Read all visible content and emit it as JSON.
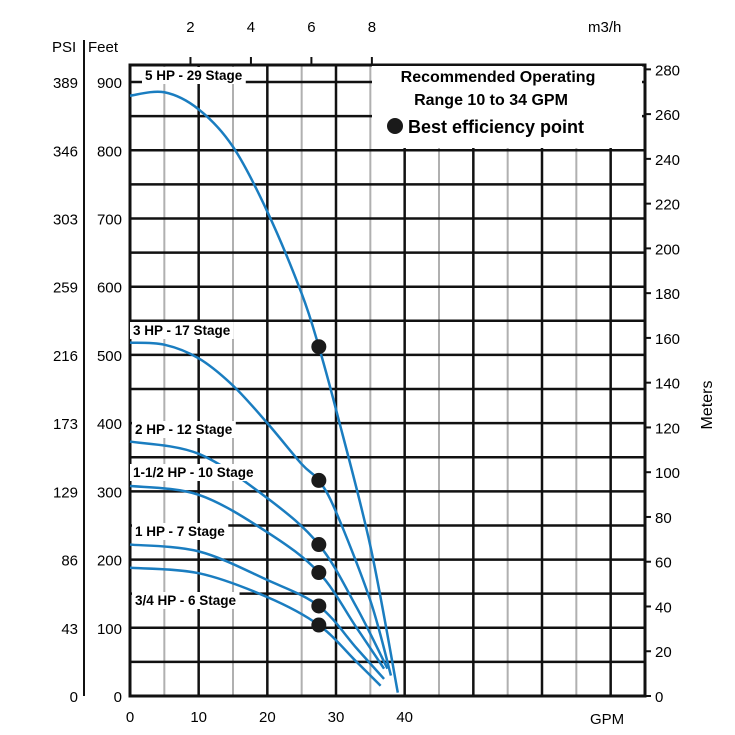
{
  "chart_data": {
    "type": "line",
    "xlabel": "GPM",
    "x_top_label": "m3/h",
    "y_left_labels": [
      "PSI",
      "Feet"
    ],
    "y_right_label": "Meters",
    "xlim": [
      0,
      75
    ],
    "ylim_feet": [
      0,
      925
    ],
    "x_ticks": [
      0,
      10,
      20,
      30,
      40
    ],
    "x_top_ticks": [
      2,
      4,
      6,
      8
    ],
    "y_feet_ticks": [
      0,
      100,
      200,
      300,
      400,
      500,
      600,
      700,
      800,
      900
    ],
    "y_psi_ticks": [
      0,
      43,
      86,
      129,
      173,
      216,
      259,
      303,
      346,
      389
    ],
    "y_meter_ticks": [
      0,
      20,
      40,
      60,
      80,
      100,
      120,
      140,
      160,
      180,
      200,
      220,
      240,
      260,
      280
    ],
    "grid": true,
    "legend": {
      "title_line1": "Recommended Operating",
      "title_line2": "Range 10 to 34 GPM",
      "marker_label": "Best efficiency point",
      "placement": "top-right"
    },
    "colors": {
      "curve": "#1a7dc0",
      "grid": "#111111",
      "minor_grid": "#b0b0b0",
      "marker": "#1a1a1a"
    },
    "series": [
      {
        "name": "5 HP - 29 Stage",
        "points": [
          [
            0,
            880
          ],
          [
            5,
            885
          ],
          [
            10,
            860
          ],
          [
            15,
            805
          ],
          [
            20,
            710
          ],
          [
            25,
            590
          ],
          [
            27.5,
            512
          ],
          [
            30,
            420
          ],
          [
            35,
            220
          ],
          [
            39,
            5
          ]
        ],
        "bep": [
          27.5,
          512
        ]
      },
      {
        "name": "3 HP - 17 Stage",
        "points": [
          [
            0,
            518
          ],
          [
            5,
            515
          ],
          [
            10,
            495
          ],
          [
            15,
            455
          ],
          [
            20,
            400
          ],
          [
            25,
            340
          ],
          [
            27.5,
            316
          ],
          [
            30,
            270
          ],
          [
            35,
            140
          ],
          [
            38,
            30
          ]
        ],
        "bep": [
          27.5,
          316
        ]
      },
      {
        "name": "2 HP - 12 Stage",
        "points": [
          [
            0,
            373
          ],
          [
            10,
            355
          ],
          [
            20,
            290
          ],
          [
            27.5,
            222
          ],
          [
            33,
            130
          ],
          [
            37.5,
            40
          ]
        ],
        "bep": [
          27.5,
          222
        ]
      },
      {
        "name": "1-1/2 HP - 10 Stage",
        "points": [
          [
            0,
            308
          ],
          [
            10,
            295
          ],
          [
            20,
            240
          ],
          [
            27.5,
            181
          ],
          [
            33,
            100
          ],
          [
            37,
            40
          ]
        ],
        "bep": [
          27.5,
          181
        ]
      },
      {
        "name": "1 HP - 7 Stage",
        "points": [
          [
            0,
            222
          ],
          [
            10,
            212
          ],
          [
            20,
            170
          ],
          [
            27.5,
            132
          ],
          [
            33,
            70
          ],
          [
            37,
            25
          ]
        ],
        "bep": [
          27.5,
          132
        ]
      },
      {
        "name": "3/4 HP - 6 Stage",
        "points": [
          [
            0,
            188
          ],
          [
            10,
            180
          ],
          [
            20,
            145
          ],
          [
            27.5,
            104
          ],
          [
            33,
            50
          ],
          [
            36.5,
            15
          ]
        ],
        "bep": [
          27.5,
          104
        ]
      }
    ]
  }
}
